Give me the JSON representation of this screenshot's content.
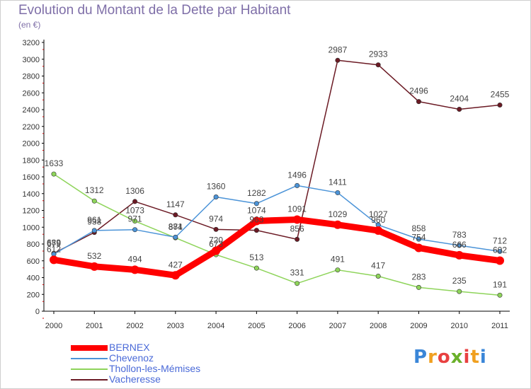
{
  "chart_data": {
    "type": "line",
    "title": "Evolution du Montant de la Dette par Habitant",
    "subtitle": "(en €)",
    "x": [
      "2000",
      "2001",
      "2002",
      "2003",
      "2004",
      "2005",
      "2006",
      "2007",
      "2008",
      "2009",
      "2010",
      "2011"
    ],
    "ylim": [
      0,
      3200
    ],
    "yticks": [
      0,
      200,
      400,
      600,
      800,
      1000,
      1200,
      1400,
      1600,
      1800,
      2000,
      2200,
      2400,
      2600,
      2800,
      3000,
      3200
    ],
    "grid": false,
    "legend": "bottom-left",
    "series": [
      {
        "name": "BERNEX",
        "color": "#ff0000",
        "values": [
          612,
          532,
          494,
          427,
          720,
          1074,
          1091,
          1029,
          960,
          754,
          666,
          602
        ],
        "labels": [
          "612",
          "532",
          "494",
          "427",
          "720",
          "1074",
          "1091",
          "1029",
          "960",
          "754",
          "666",
          "602"
        ]
      },
      {
        "name": "Chevenoz",
        "color": "#4c94d8",
        "values": [
          679,
          961,
          971,
          881,
          1360,
          1282,
          1496,
          1411,
          1027,
          858,
          783,
          712
        ],
        "labels": [
          "679",
          "961",
          "971",
          "881",
          "1360",
          "1282",
          "1496",
          "1411",
          "1027",
          "858",
          "783",
          "712"
        ]
      },
      {
        "name": "Thollon-les-Mémises",
        "color": "#8ed45a",
        "values": [
          1633,
          1312,
          1073,
          874,
          673,
          513,
          331,
          491,
          417,
          283,
          235,
          191
        ],
        "labels": [
          "1633",
          "1312",
          "1073",
          "874",
          "673",
          "513",
          "331",
          "491",
          "417",
          "283",
          "235",
          "191"
        ]
      },
      {
        "name": "Vacheresse",
        "color": "#6b1a24",
        "values": [
          689,
          938,
          1306,
          1147,
          974,
          963,
          856,
          2987,
          2933,
          2496,
          2404,
          2455
        ],
        "labels": [
          "689",
          "938",
          "1306",
          "1147",
          "974",
          "963",
          "856",
          "2987",
          "2933",
          "2496",
          "2404",
          "2455"
        ]
      }
    ]
  },
  "logo": {
    "letters": [
      "P",
      "r",
      "o",
      "x",
      "i",
      "t",
      "i"
    ],
    "colors": [
      "#3a86d8",
      "#f0a020",
      "#e84040",
      "#6ab02a",
      "#e84040",
      "#f0a020",
      "#3a86d8"
    ]
  }
}
